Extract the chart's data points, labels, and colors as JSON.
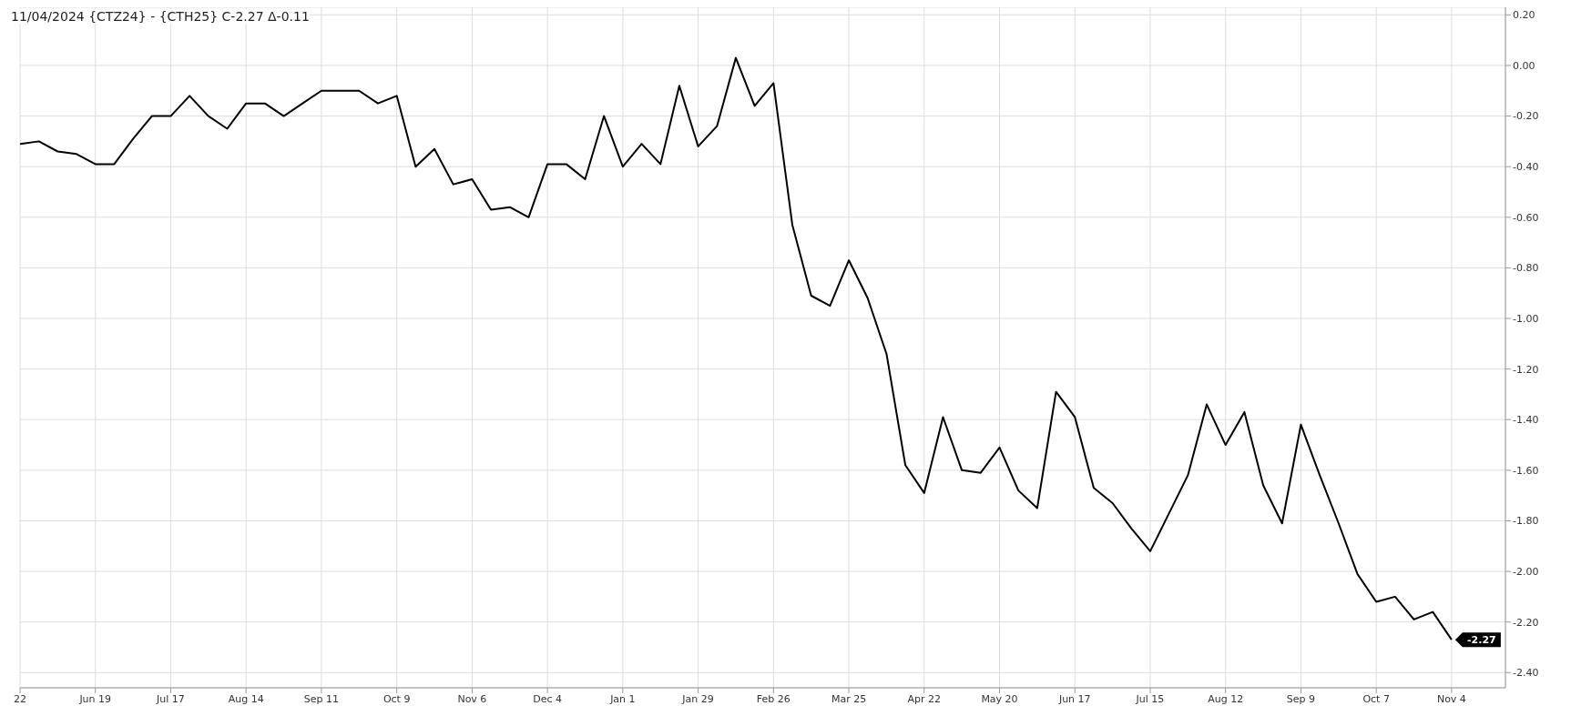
{
  "chart_data": {
    "type": "line",
    "title": "11/04/2024 {CTZ24} - {CTH25} C-2.27 Δ-0.11",
    "x": [
      "2023-05-22",
      "2023-05-29",
      "2023-06-05",
      "2023-06-12",
      "2023-06-19",
      "2023-06-26",
      "2023-07-03",
      "2023-07-10",
      "2023-07-17",
      "2023-07-24",
      "2023-07-31",
      "2023-08-07",
      "2023-08-14",
      "2023-08-21",
      "2023-08-28",
      "2023-09-04",
      "2023-09-11",
      "2023-09-18",
      "2023-09-25",
      "2023-10-02",
      "2023-10-09",
      "2023-10-16",
      "2023-10-23",
      "2023-10-30",
      "2023-11-06",
      "2023-11-13",
      "2023-11-20",
      "2023-11-27",
      "2023-12-04",
      "2023-12-11",
      "2023-12-18",
      "2023-12-25",
      "2024-01-01",
      "2024-01-08",
      "2024-01-15",
      "2024-01-22",
      "2024-01-29",
      "2024-02-05",
      "2024-02-12",
      "2024-02-19",
      "2024-02-26",
      "2024-03-04",
      "2024-03-11",
      "2024-03-18",
      "2024-03-25",
      "2024-04-01",
      "2024-04-08",
      "2024-04-15",
      "2024-04-22",
      "2024-04-29",
      "2024-05-06",
      "2024-05-13",
      "2024-05-20",
      "2024-05-27",
      "2024-06-03",
      "2024-06-10",
      "2024-06-17",
      "2024-06-24",
      "2024-07-01",
      "2024-07-08",
      "2024-07-15",
      "2024-07-22",
      "2024-07-29",
      "2024-08-05",
      "2024-08-12",
      "2024-08-19",
      "2024-08-26",
      "2024-09-02",
      "2024-09-09",
      "2024-09-16",
      "2024-09-23",
      "2024-09-30",
      "2024-10-07",
      "2024-10-14",
      "2024-10-21",
      "2024-10-28",
      "2024-11-04"
    ],
    "series": [
      {
        "color": "#000000",
        "values": [
          -0.31,
          -0.3,
          -0.34,
          -0.35,
          -0.39,
          -0.39,
          -0.29,
          -0.2,
          -0.2,
          -0.12,
          -0.2,
          -0.25,
          -0.15,
          -0.15,
          -0.2,
          -0.15,
          -0.1,
          -0.1,
          -0.1,
          -0.15,
          -0.12,
          -0.4,
          -0.33,
          -0.47,
          -0.45,
          -0.57,
          -0.56,
          -0.6,
          -0.39,
          -0.39,
          -0.45,
          -0.2,
          -0.4,
          -0.31,
          -0.39,
          -0.08,
          -0.32,
          -0.24,
          0.03,
          -0.16,
          -0.07,
          -0.63,
          -0.91,
          -0.95,
          -0.77,
          -0.92,
          -1.14,
          -1.58,
          -1.69,
          -1.39,
          -1.6,
          -1.61,
          -1.51,
          -1.68,
          -1.75,
          -1.29,
          -1.39,
          -1.67,
          -1.73,
          -1.83,
          -1.92,
          -1.77,
          -1.62,
          -1.34,
          -1.5,
          -1.37,
          -1.66,
          -1.81,
          -1.42,
          -1.62,
          -1.81,
          -2.01,
          -2.12,
          -2.1,
          -2.19,
          -2.16,
          -2.27
        ]
      }
    ],
    "xlim": [
      "2023-05-22",
      "2024-11-24"
    ],
    "xticks": [
      {
        "value": "2023-05-22",
        "label": "22"
      },
      {
        "value": "2023-06-19",
        "label": "Jun 19"
      },
      {
        "value": "2023-07-17",
        "label": "Jul 17"
      },
      {
        "value": "2023-08-14",
        "label": "Aug 14"
      },
      {
        "value": "2023-09-11",
        "label": "Sep 11"
      },
      {
        "value": "2023-10-09",
        "label": "Oct 9"
      },
      {
        "value": "2023-11-06",
        "label": "Nov 6"
      },
      {
        "value": "2023-12-04",
        "label": "Dec 4"
      },
      {
        "value": "2024-01-01",
        "label": "Jan 1"
      },
      {
        "value": "2024-01-29",
        "label": "Jan 29"
      },
      {
        "value": "2024-02-26",
        "label": "Feb 26"
      },
      {
        "value": "2024-03-25",
        "label": "Mar 25"
      },
      {
        "value": "2024-04-22",
        "label": "Apr 22"
      },
      {
        "value": "2024-05-20",
        "label": "May 20"
      },
      {
        "value": "2024-06-17",
        "label": "Jun 17"
      },
      {
        "value": "2024-07-15",
        "label": "Jul 15"
      },
      {
        "value": "2024-08-12",
        "label": "Aug 12"
      },
      {
        "value": "2024-09-09",
        "label": "Sep 9"
      },
      {
        "value": "2024-10-07",
        "label": "Oct 7"
      },
      {
        "value": "2024-11-04",
        "label": "Nov 4"
      }
    ],
    "ylim": [
      -2.46,
      0.23
    ],
    "yticks": [
      {
        "value": 0.2,
        "label": "0.20"
      },
      {
        "value": 0,
        "label": "0.00"
      },
      {
        "value": -0.2,
        "label": "-0.20"
      },
      {
        "value": -0.4,
        "label": "-0.40"
      },
      {
        "value": -0.6,
        "label": "-0.60"
      },
      {
        "value": -0.8,
        "label": "-0.80"
      },
      {
        "value": -1,
        "label": "-1.00"
      },
      {
        "value": -1.2,
        "label": "-1.20"
      },
      {
        "value": -1.4,
        "label": "-1.40"
      },
      {
        "value": -1.6,
        "label": "-1.60"
      },
      {
        "value": -1.8,
        "label": "-1.80"
      },
      {
        "value": -2,
        "label": "-2.00"
      },
      {
        "value": -2.2,
        "label": "-2.20"
      },
      {
        "value": -2.4,
        "label": "-2.40"
      }
    ],
    "grid": true,
    "marker": "none",
    "line_style": "solid",
    "annotations": [
      {
        "text": "-2.27",
        "x": "2024-11-04",
        "y": -2.27
      }
    ]
  }
}
